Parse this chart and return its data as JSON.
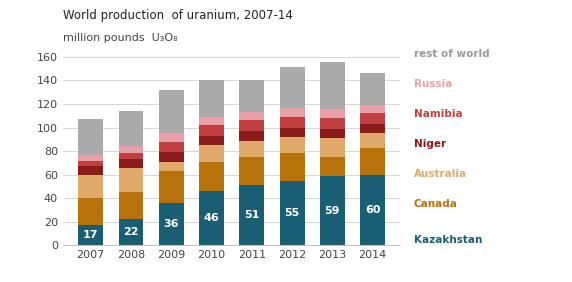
{
  "years": [
    "2007",
    "2008",
    "2009",
    "2010",
    "2011",
    "2012",
    "2013",
    "2014"
  ],
  "kazakhstan": [
    17,
    22,
    36,
    46,
    51,
    55,
    59,
    60
  ],
  "canada": [
    23,
    23,
    27,
    25,
    24,
    23,
    16,
    23
  ],
  "australia": [
    20,
    21,
    8,
    14,
    14,
    14,
    16,
    12
  ],
  "niger": [
    7,
    7,
    8,
    8,
    8,
    8,
    8,
    8
  ],
  "namibia": [
    5,
    5,
    9,
    9,
    9,
    9,
    9,
    9
  ],
  "russia": [
    5,
    6,
    7,
    7,
    7,
    8,
    8,
    7
  ],
  "rest": [
    30,
    30,
    37,
    31,
    27,
    34,
    40,
    27
  ],
  "colors": {
    "kazakhstan": "#1a5e73",
    "canada": "#b8720a",
    "australia": "#e0aa6a",
    "niger": "#8b1a1a",
    "namibia": "#c04040",
    "russia": "#e8a0a8",
    "rest": "#aaaaaa"
  },
  "title": "World production  of uranium, 2007-14",
  "ylabel_line1": "million pounds  U₃O₈",
  "ylim": [
    0,
    170
  ],
  "yticks": [
    0,
    20,
    40,
    60,
    80,
    100,
    120,
    140,
    160
  ],
  "legend_labels": [
    "rest of world",
    "Russia",
    "Namibia",
    "Niger",
    "Australia",
    "Canada",
    "Kazakhstan"
  ],
  "legend_text_colors": [
    "#999999",
    "#e8a0a8",
    "#c04040",
    "#8b1a1a",
    "#e0aa6a",
    "#b8720a",
    "#1a5e73"
  ],
  "kaz_labels": [
    "17",
    "22",
    "36",
    "46",
    "51",
    "55",
    "59",
    "60"
  ]
}
